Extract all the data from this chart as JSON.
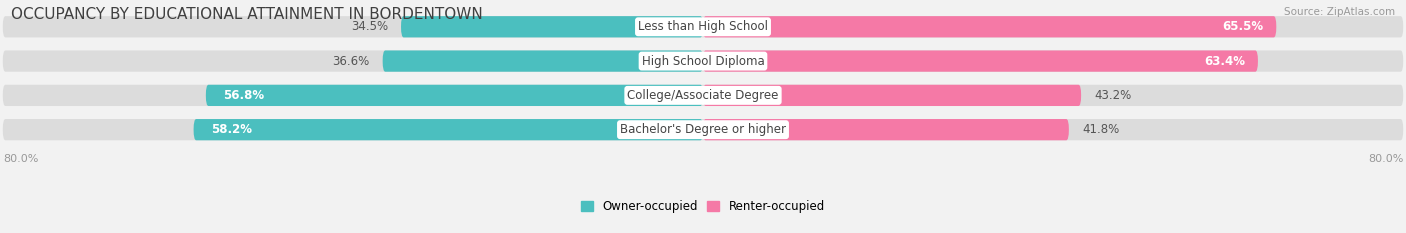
{
  "title": "OCCUPANCY BY EDUCATIONAL ATTAINMENT IN BORDENTOWN",
  "source": "Source: ZipAtlas.com",
  "categories": [
    "Less than High School",
    "High School Diploma",
    "College/Associate Degree",
    "Bachelor's Degree or higher"
  ],
  "owner_values": [
    34.5,
    36.6,
    56.8,
    58.2
  ],
  "renter_values": [
    65.5,
    63.4,
    43.2,
    41.8
  ],
  "owner_color": "#4BBFBF",
  "renter_color": "#F579A6",
  "bar_bg_color": "#DCDCDC",
  "owner_label": "Owner-occupied",
  "renter_label": "Renter-occupied",
  "background_color": "#F2F2F2",
  "bar_height": 0.62,
  "title_fontsize": 11,
  "label_fontsize": 8.5,
  "tick_fontsize": 8,
  "source_fontsize": 7.5
}
